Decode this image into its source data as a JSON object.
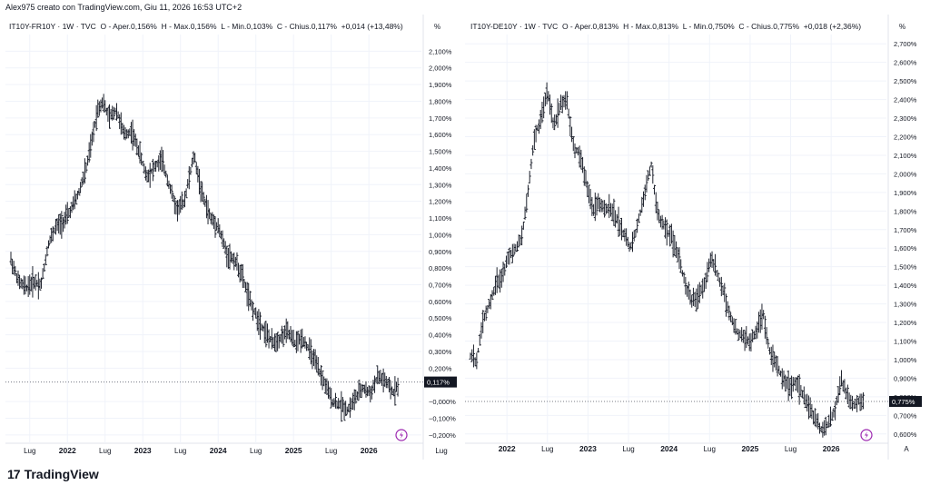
{
  "header": {
    "title": "Alex975 creato con TradingView.com, Giu 11, 2026 16:53 UTC+2"
  },
  "logo": {
    "text": "TradingView",
    "icon": "tradingview-logo-icon"
  },
  "colors": {
    "bars": "#1e222d",
    "grid": "#f0f3fa",
    "axis_line": "#e0e3eb",
    "price_tag_bg": "#131722",
    "price_tag_text": "#ffffff",
    "lightning_icon": "#9c27b0"
  },
  "charts": [
    {
      "legend": {
        "symbol": "IT10Y-FR10Y · 1W · TVC",
        "o": "O - Aper.",
        "o_val": "0,156%",
        "h": "H - Max.",
        "h_val": "0,156%",
        "l": "L - Min.",
        "l_val": "0,103%",
        "c": "C - Chius.",
        "c_val": "0,117%",
        "change": "+0,014 (+13,48%)"
      },
      "unit": "%",
      "price_tag": "0,117%",
      "x_axis_extra": "Lug",
      "lightning_icon": "lightning-icon"
    },
    {
      "legend": {
        "symbol": "IT10Y-DE10Y · 1W · TVC",
        "o": "O - Aper.",
        "o_val": "0,813%",
        "h": "H - Max.",
        "h_val": "0,813%",
        "l": "L - Min.",
        "l_val": "0,750%",
        "c": "C - Chius.",
        "c_val": "0,775%",
        "change": "+0,018 (+2,36%)"
      },
      "unit": "%",
      "price_tag": "0,775%",
      "x_axis_extra": "A",
      "lightning_icon": "lightning-icon"
    }
  ],
  "chart_data": [
    {
      "type": "ohlc",
      "title": "IT10Y-FR10Y · 1W · TVC",
      "ylabel": "%",
      "ylim": [
        -0.25,
        2.2
      ],
      "y_ticks": [
        2.1,
        2.0,
        1.9,
        1.8,
        1.7,
        1.6,
        1.5,
        1.4,
        1.3,
        1.2,
        1.1,
        1.0,
        0.9,
        0.8,
        0.7,
        0.6,
        0.5,
        0.4,
        0.3,
        0.2,
        0.0,
        -0.1,
        -0.2
      ],
      "y_tick_labels": [
        "2,100%",
        "2,000%",
        "1,900%",
        "1,800%",
        "1,700%",
        "1,600%",
        "1,500%",
        "1,400%",
        "1,300%",
        "1,200%",
        "1,100%",
        "1,000%",
        "0,900%",
        "0,800%",
        "0,700%",
        "0,600%",
        "0,500%",
        "0,400%",
        "0,300%",
        "0,200%",
        "−0,000%",
        "−0,100%",
        "−0,200%"
      ],
      "x_labels": [
        "Lug",
        "2022",
        "Lug",
        "2023",
        "Lug",
        "2024",
        "Lug",
        "2025",
        "Lug",
        "2026"
      ],
      "x_label_dates": [
        2021.5,
        2022.0,
        2022.5,
        2023.0,
        2023.5,
        2024.0,
        2024.5,
        2025.0,
        2025.5,
        2026.0
      ],
      "x_range": [
        2021.25,
        2026.48
      ],
      "last_close": 0.117,
      "series": [
        {
          "x": 2021.25,
          "v": 0.85
        },
        {
          "x": 2021.35,
          "v": 0.72
        },
        {
          "x": 2021.45,
          "v": 0.68
        },
        {
          "x": 2021.55,
          "v": 0.72
        },
        {
          "x": 2021.65,
          "v": 0.7
        },
        {
          "x": 2021.75,
          "v": 0.95
        },
        {
          "x": 2021.85,
          "v": 1.05
        },
        {
          "x": 2021.95,
          "v": 1.08
        },
        {
          "x": 2022.05,
          "v": 1.15
        },
        {
          "x": 2022.15,
          "v": 1.25
        },
        {
          "x": 2022.25,
          "v": 1.4
        },
        {
          "x": 2022.32,
          "v": 1.55
        },
        {
          "x": 2022.4,
          "v": 1.75
        },
        {
          "x": 2022.47,
          "v": 1.8
        },
        {
          "x": 2022.55,
          "v": 1.7
        },
        {
          "x": 2022.65,
          "v": 1.75
        },
        {
          "x": 2022.75,
          "v": 1.6
        },
        {
          "x": 2022.85,
          "v": 1.62
        },
        {
          "x": 2022.95,
          "v": 1.5
        },
        {
          "x": 2023.05,
          "v": 1.35
        },
        {
          "x": 2023.15,
          "v": 1.4
        },
        {
          "x": 2023.25,
          "v": 1.45
        },
        {
          "x": 2023.35,
          "v": 1.3
        },
        {
          "x": 2023.45,
          "v": 1.15
        },
        {
          "x": 2023.55,
          "v": 1.2
        },
        {
          "x": 2023.68,
          "v": 1.48
        },
        {
          "x": 2023.78,
          "v": 1.25
        },
        {
          "x": 2023.9,
          "v": 1.1
        },
        {
          "x": 2024.0,
          "v": 1.05
        },
        {
          "x": 2024.12,
          "v": 0.88
        },
        {
          "x": 2024.22,
          "v": 0.85
        },
        {
          "x": 2024.32,
          "v": 0.75
        },
        {
          "x": 2024.42,
          "v": 0.6
        },
        {
          "x": 2024.52,
          "v": 0.5
        },
        {
          "x": 2024.62,
          "v": 0.42
        },
        {
          "x": 2024.72,
          "v": 0.35
        },
        {
          "x": 2024.82,
          "v": 0.38
        },
        {
          "x": 2024.92,
          "v": 0.42
        },
        {
          "x": 2025.02,
          "v": 0.35
        },
        {
          "x": 2025.12,
          "v": 0.38
        },
        {
          "x": 2025.22,
          "v": 0.3
        },
        {
          "x": 2025.32,
          "v": 0.2
        },
        {
          "x": 2025.42,
          "v": 0.1
        },
        {
          "x": 2025.52,
          "v": 0.0
        },
        {
          "x": 2025.62,
          "v": -0.02
        },
        {
          "x": 2025.72,
          "v": -0.05
        },
        {
          "x": 2025.82,
          "v": 0.02
        },
        {
          "x": 2025.92,
          "v": 0.08
        },
        {
          "x": 2026.02,
          "v": 0.05
        },
        {
          "x": 2026.12,
          "v": 0.15
        },
        {
          "x": 2026.22,
          "v": 0.12
        },
        {
          "x": 2026.32,
          "v": 0.05
        },
        {
          "x": 2026.4,
          "v": 0.117
        }
      ]
    },
    {
      "type": "ohlc",
      "title": "IT10Y-DE10Y · 1W · TVC",
      "ylabel": "%",
      "ylim": [
        0.55,
        2.75
      ],
      "y_ticks": [
        2.7,
        2.6,
        2.5,
        2.4,
        2.3,
        2.2,
        2.1,
        2.0,
        1.9,
        1.8,
        1.7,
        1.6,
        1.5,
        1.4,
        1.3,
        1.2,
        1.1,
        1.0,
        0.9,
        0.8,
        0.7,
        0.6
      ],
      "y_tick_labels": [
        "2,700%",
        "2,600%",
        "2,500%",
        "2,400%",
        "2,300%",
        "2,200%",
        "2,100%",
        "2,000%",
        "1,900%",
        "1,800%",
        "1,700%",
        "1,600%",
        "1,500%",
        "1,400%",
        "1,300%",
        "1,200%",
        "1,100%",
        "1,000%",
        "0,900%",
        "0,800%",
        "0,700%",
        "0,600%"
      ],
      "x_labels": [
        "2022",
        "Lug",
        "2023",
        "Lug",
        "2024",
        "Lug",
        "2025",
        "Lug",
        "2026"
      ],
      "x_label_dates": [
        2022.0,
        2022.5,
        2023.0,
        2023.5,
        2024.0,
        2024.5,
        2025.0,
        2025.5,
        2026.0
      ],
      "x_range": [
        2021.55,
        2026.48
      ],
      "last_close": 0.775,
      "series": [
        {
          "x": 2021.55,
          "v": 1.02
        },
        {
          "x": 2021.62,
          "v": 0.98
        },
        {
          "x": 2021.7,
          "v": 1.2
        },
        {
          "x": 2021.78,
          "v": 1.3
        },
        {
          "x": 2021.86,
          "v": 1.4
        },
        {
          "x": 2021.94,
          "v": 1.45
        },
        {
          "x": 2022.02,
          "v": 1.55
        },
        {
          "x": 2022.1,
          "v": 1.6
        },
        {
          "x": 2022.18,
          "v": 1.65
        },
        {
          "x": 2022.26,
          "v": 1.9
        },
        {
          "x": 2022.34,
          "v": 2.2
        },
        {
          "x": 2022.42,
          "v": 2.3
        },
        {
          "x": 2022.5,
          "v": 2.45
        },
        {
          "x": 2022.58,
          "v": 2.25
        },
        {
          "x": 2022.66,
          "v": 2.38
        },
        {
          "x": 2022.74,
          "v": 2.4
        },
        {
          "x": 2022.82,
          "v": 2.15
        },
        {
          "x": 2022.9,
          "v": 2.1
        },
        {
          "x": 2022.98,
          "v": 1.95
        },
        {
          "x": 2023.06,
          "v": 1.8
        },
        {
          "x": 2023.14,
          "v": 1.85
        },
        {
          "x": 2023.22,
          "v": 1.82
        },
        {
          "x": 2023.32,
          "v": 1.78
        },
        {
          "x": 2023.42,
          "v": 1.7
        },
        {
          "x": 2023.52,
          "v": 1.6
        },
        {
          "x": 2023.6,
          "v": 1.7
        },
        {
          "x": 2023.7,
          "v": 1.9
        },
        {
          "x": 2023.78,
          "v": 2.05
        },
        {
          "x": 2023.86,
          "v": 1.78
        },
        {
          "x": 2023.94,
          "v": 1.72
        },
        {
          "x": 2024.04,
          "v": 1.65
        },
        {
          "x": 2024.12,
          "v": 1.55
        },
        {
          "x": 2024.2,
          "v": 1.4
        },
        {
          "x": 2024.28,
          "v": 1.32
        },
        {
          "x": 2024.36,
          "v": 1.35
        },
        {
          "x": 2024.44,
          "v": 1.4
        },
        {
          "x": 2024.52,
          "v": 1.55
        },
        {
          "x": 2024.6,
          "v": 1.45
        },
        {
          "x": 2024.68,
          "v": 1.35
        },
        {
          "x": 2024.76,
          "v": 1.22
        },
        {
          "x": 2024.84,
          "v": 1.15
        },
        {
          "x": 2024.92,
          "v": 1.12
        },
        {
          "x": 2025.0,
          "v": 1.1
        },
        {
          "x": 2025.08,
          "v": 1.15
        },
        {
          "x": 2025.16,
          "v": 1.25
        },
        {
          "x": 2025.24,
          "v": 1.05
        },
        {
          "x": 2025.32,
          "v": 0.98
        },
        {
          "x": 2025.4,
          "v": 0.9
        },
        {
          "x": 2025.48,
          "v": 0.85
        },
        {
          "x": 2025.56,
          "v": 0.88
        },
        {
          "x": 2025.64,
          "v": 0.82
        },
        {
          "x": 2025.72,
          "v": 0.75
        },
        {
          "x": 2025.8,
          "v": 0.68
        },
        {
          "x": 2025.88,
          "v": 0.62
        },
        {
          "x": 2025.96,
          "v": 0.65
        },
        {
          "x": 2026.04,
          "v": 0.72
        },
        {
          "x": 2026.12,
          "v": 0.9
        },
        {
          "x": 2026.2,
          "v": 0.8
        },
        {
          "x": 2026.28,
          "v": 0.75
        },
        {
          "x": 2026.36,
          "v": 0.78
        },
        {
          "x": 2026.4,
          "v": 0.775
        }
      ]
    }
  ]
}
